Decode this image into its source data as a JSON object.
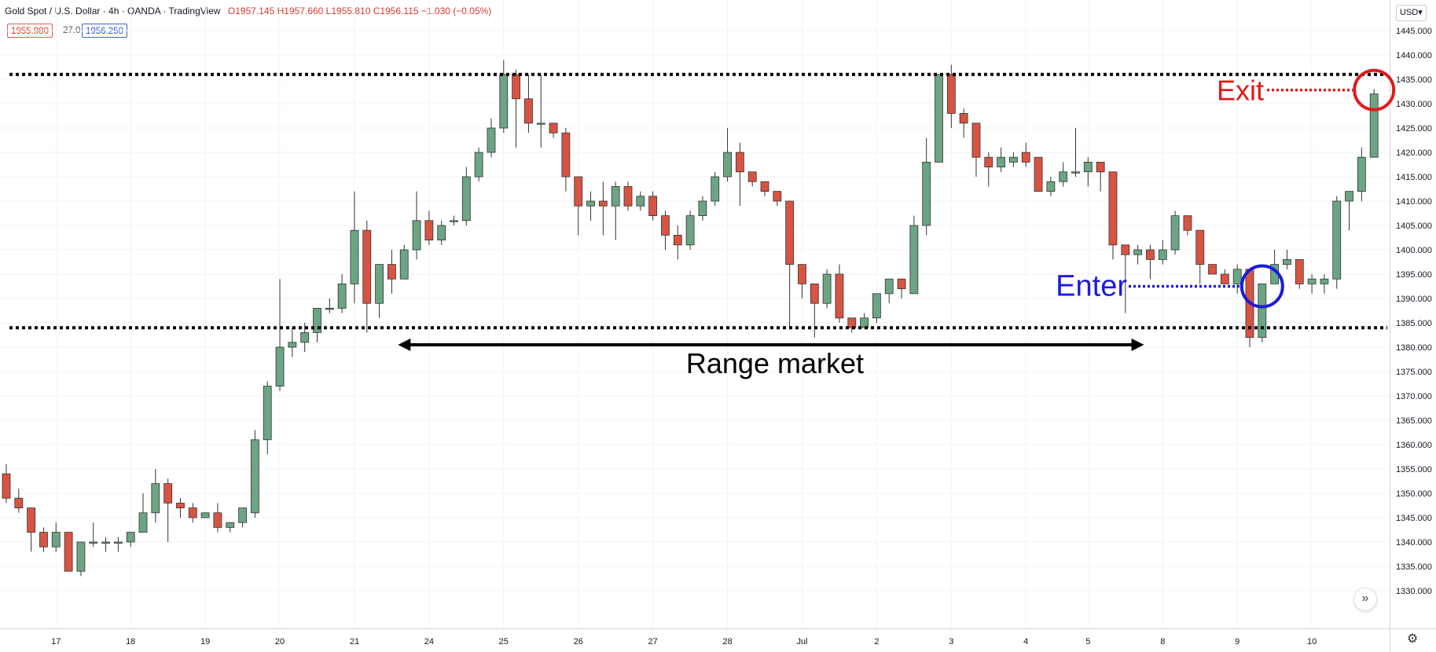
{
  "header": {
    "symbol": "Gold Spot / U.S. Dollar · 4h · OANDA · TradingView",
    "ohlc": "O1957.145 H1957.660 L1955.810 C1956.115 −1.030 (−0.05%)"
  },
  "quote": {
    "bid": "1955.980",
    "spread": "27.0",
    "ask": "1956.250"
  },
  "currency": "USD▾",
  "icons": {
    "scroll_to_latest": "double-chevron-right-icon",
    "settings": "gear-icon"
  },
  "colors": {
    "up": "#6ba583",
    "down": "#d75442",
    "range_line": "#000000",
    "enter": "#1a1ae0",
    "exit": "#e01a1a",
    "grid": "#f0f3fa"
  },
  "chart_data": {
    "type": "candlestick",
    "ylim": [
      1326,
      1445
    ],
    "y_ticks": [
      "1330.000",
      "1335.000",
      "1340.000",
      "1345.000",
      "1350.000",
      "1355.000",
      "1360.000",
      "1365.000",
      "1370.000",
      "1375.000",
      "1380.000",
      "1385.000",
      "1390.000",
      "1395.000",
      "1400.000",
      "1405.000",
      "1410.000",
      "1415.000",
      "1420.000",
      "1425.000",
      "1430.000",
      "1435.000",
      "1440.000",
      "1445.000"
    ],
    "x_ticks": [
      {
        "label": "17",
        "bar": 4
      },
      {
        "label": "18",
        "bar": 10
      },
      {
        "label": "19",
        "bar": 16
      },
      {
        "label": "20",
        "bar": 22
      },
      {
        "label": "21",
        "bar": 28
      },
      {
        "label": "24",
        "bar": 34
      },
      {
        "label": "25",
        "bar": 40
      },
      {
        "label": "26",
        "bar": 46
      },
      {
        "label": "27",
        "bar": 52
      },
      {
        "label": "28",
        "bar": 58
      },
      {
        "label": "Jul",
        "bar": 64
      },
      {
        "label": "2",
        "bar": 70
      },
      {
        "label": "3",
        "bar": 76
      },
      {
        "label": "4",
        "bar": 82
      },
      {
        "label": "5",
        "bar": 87
      },
      {
        "label": "8",
        "bar": 93
      },
      {
        "label": "9",
        "bar": 99
      },
      {
        "label": "10",
        "bar": 105
      }
    ],
    "candles": [
      [
        1354,
        1356,
        1348,
        1349
      ],
      [
        1349,
        1351,
        1346,
        1347
      ],
      [
        1347,
        1347,
        1338,
        1342
      ],
      [
        1342,
        1343,
        1338,
        1339
      ],
      [
        1339,
        1344,
        1338,
        1342
      ],
      [
        1342,
        1342,
        1334,
        1334
      ],
      [
        1334,
        1340,
        1333,
        1340
      ],
      [
        1340,
        1344,
        1339,
        1340
      ],
      [
        1340,
        1341,
        1338,
        1340
      ],
      [
        1340,
        1341,
        1338,
        1340
      ],
      [
        1340,
        1342,
        1339,
        1342
      ],
      [
        1342,
        1350,
        1342,
        1346
      ],
      [
        1346,
        1355,
        1344,
        1352
      ],
      [
        1352,
        1353,
        1340,
        1348
      ],
      [
        1348,
        1349,
        1345,
        1347
      ],
      [
        1347,
        1348,
        1344,
        1345
      ],
      [
        1345,
        1346,
        1345,
        1346
      ],
      [
        1346,
        1348,
        1342,
        1343
      ],
      [
        1343,
        1344,
        1342,
        1344
      ],
      [
        1344,
        1347,
        1343,
        1347
      ],
      [
        1346,
        1363,
        1345,
        1361
      ],
      [
        1361,
        1373,
        1358,
        1372
      ],
      [
        1372,
        1394,
        1371,
        1380
      ],
      [
        1380,
        1384,
        1378,
        1381
      ],
      [
        1381,
        1385,
        1379,
        1383
      ],
      [
        1383,
        1388,
        1381,
        1388
      ],
      [
        1388,
        1390,
        1387,
        1388
      ],
      [
        1388,
        1395,
        1387,
        1393
      ],
      [
        1393,
        1412,
        1389,
        1404
      ],
      [
        1404,
        1406,
        1383,
        1389
      ],
      [
        1389,
        1397,
        1386,
        1397
      ],
      [
        1397,
        1400,
        1391,
        1394
      ],
      [
        1394,
        1401,
        1394,
        1400
      ],
      [
        1400,
        1412,
        1398,
        1406
      ],
      [
        1406,
        1408,
        1401,
        1402
      ],
      [
        1402,
        1406,
        1401,
        1405
      ],
      [
        1406,
        1407,
        1405,
        1406
      ],
      [
        1406,
        1417,
        1405,
        1415
      ],
      [
        1415,
        1421,
        1414,
        1420
      ],
      [
        1420,
        1427,
        1419,
        1425
      ],
      [
        1425,
        1439,
        1424,
        1436
      ],
      [
        1436,
        1437,
        1421,
        1431
      ],
      [
        1431,
        1436,
        1424,
        1426
      ],
      [
        1426,
        1436,
        1421,
        1426
      ],
      [
        1426,
        1426,
        1423,
        1424
      ],
      [
        1424,
        1425,
        1412,
        1415
      ],
      [
        1415,
        1415,
        1403,
        1409
      ],
      [
        1409,
        1412,
        1406,
        1410
      ],
      [
        1410,
        1414,
        1403,
        1409
      ],
      [
        1409,
        1414,
        1402,
        1413
      ],
      [
        1413,
        1414,
        1408,
        1409
      ],
      [
        1409,
        1412,
        1408,
        1411
      ],
      [
        1411,
        1412,
        1406,
        1407
      ],
      [
        1407,
        1408,
        1400,
        1403
      ],
      [
        1403,
        1405,
        1398,
        1401
      ],
      [
        1401,
        1408,
        1400,
        1407
      ],
      [
        1407,
        1411,
        1406,
        1410
      ],
      [
        1410,
        1416,
        1409,
        1415
      ],
      [
        1415,
        1425,
        1414,
        1420
      ],
      [
        1420,
        1422,
        1409,
        1416
      ],
      [
        1416,
        1416,
        1413,
        1414
      ],
      [
        1414,
        1414,
        1411,
        1412
      ],
      [
        1412,
        1412,
        1409,
        1410
      ],
      [
        1410,
        1410,
        1384,
        1397
      ],
      [
        1397,
        1397,
        1390,
        1393
      ],
      [
        1393,
        1393,
        1382,
        1389
      ],
      [
        1389,
        1396,
        1388,
        1395
      ],
      [
        1395,
        1397,
        1385,
        1386
      ],
      [
        1386,
        1386,
        1383,
        1384
      ],
      [
        1384,
        1387,
        1384,
        1386
      ],
      [
        1386,
        1391,
        1385,
        1391
      ],
      [
        1391,
        1394,
        1389,
        1394
      ],
      [
        1394,
        1394,
        1390,
        1392
      ],
      [
        1391,
        1407,
        1391,
        1405
      ],
      [
        1405,
        1423,
        1403,
        1418
      ],
      [
        1418,
        1436,
        1418,
        1436
      ],
      [
        1436,
        1438,
        1425,
        1428
      ],
      [
        1428,
        1429,
        1423,
        1426
      ],
      [
        1426,
        1426,
        1415,
        1419
      ],
      [
        1419,
        1420,
        1413,
        1417
      ],
      [
        1417,
        1421,
        1416,
        1419
      ],
      [
        1418,
        1420,
        1417,
        1419
      ],
      [
        1420,
        1422,
        1417,
        1418
      ],
      [
        1419,
        1419,
        1412,
        1412
      ],
      [
        1412,
        1415,
        1411,
        1414
      ],
      [
        1414,
        1418,
        1413,
        1416
      ],
      [
        1416,
        1425,
        1415,
        1416
      ],
      [
        1416,
        1419,
        1413,
        1418
      ],
      [
        1418,
        1418,
        1412,
        1416
      ],
      [
        1416,
        1416,
        1398,
        1401
      ],
      [
        1401,
        1401,
        1387,
        1399
      ],
      [
        1399,
        1401,
        1397,
        1400
      ],
      [
        1400,
        1401,
        1394,
        1398
      ],
      [
        1398,
        1402,
        1397,
        1400
      ],
      [
        1400,
        1408,
        1399,
        1407
      ],
      [
        1407,
        1407,
        1403,
        1404
      ],
      [
        1404,
        1404,
        1393,
        1397
      ],
      [
        1397,
        1397,
        1395,
        1395
      ],
      [
        1395,
        1396,
        1393,
        1393
      ],
      [
        1393,
        1397,
        1391,
        1396
      ],
      [
        1396,
        1396,
        1380,
        1382
      ],
      [
        1382,
        1393,
        1381,
        1393
      ],
      [
        1393,
        1400,
        1393,
        1397
      ],
      [
        1397,
        1400,
        1396,
        1398
      ],
      [
        1398,
        1398,
        1392,
        1393
      ],
      [
        1393,
        1395,
        1391,
        1394
      ],
      [
        1393,
        1395,
        1391,
        1394
      ],
      [
        1394,
        1411,
        1392,
        1410
      ],
      [
        1410,
        1412,
        1404,
        1412
      ],
      [
        1412,
        1421,
        1410,
        1419
      ],
      [
        1419,
        1433,
        1419,
        1432
      ]
    ],
    "annotations": {
      "range_top": 1436,
      "range_bottom": 1384,
      "range_label": "Range market",
      "range_arrow_bars": [
        31.5,
        91.5
      ],
      "range_arrow_price": 1380.5,
      "enter_label": "Enter",
      "enter_bar": 101,
      "enter_price": 1392.5,
      "exit_label": "Exit",
      "exit_bar": 110,
      "exit_price": 1432
    }
  }
}
